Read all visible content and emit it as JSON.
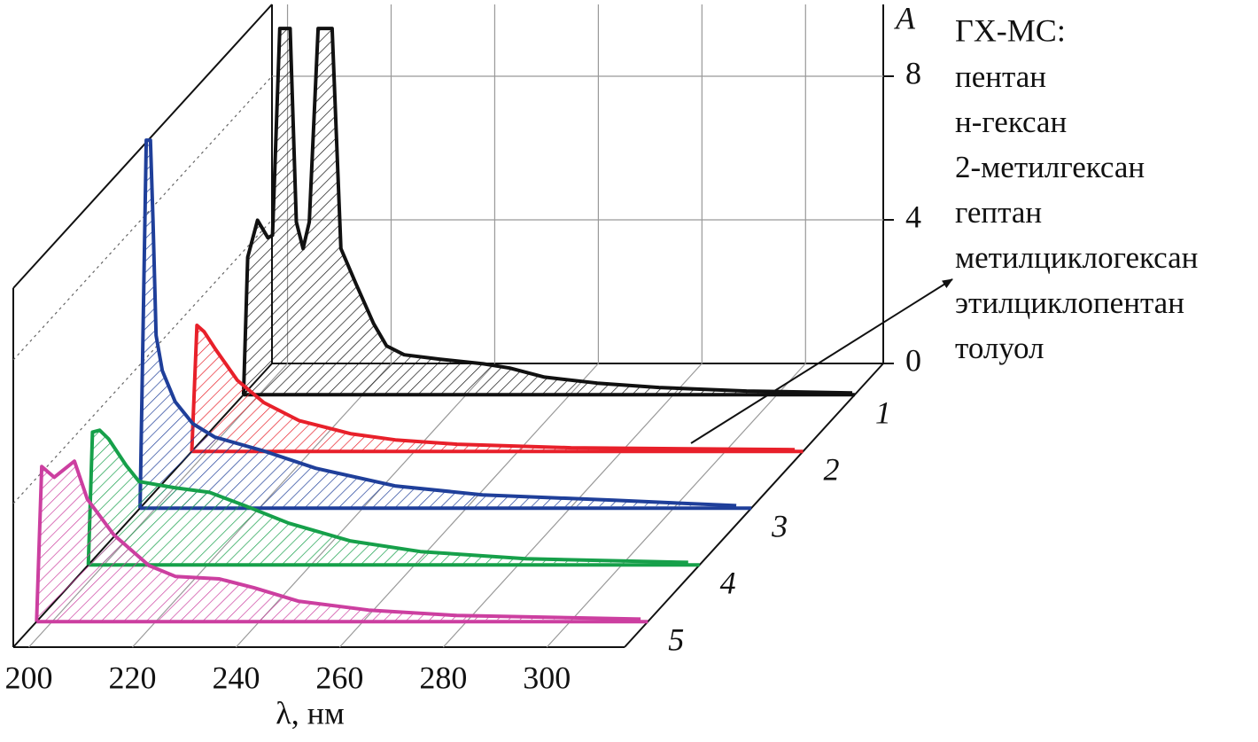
{
  "chart_data": {
    "type": "waterfall",
    "xlim": [
      197,
      315
    ],
    "ylim": [
      0,
      10
    ],
    "xticks": [
      200,
      220,
      240,
      260,
      280,
      300
    ],
    "yticks": [
      0,
      4,
      8
    ],
    "x_label": "λ, нм",
    "y_label": "A",
    "grid": true,
    "series": [
      {
        "name": "1",
        "color": "#111111",
        "x": [
          197,
          197.8,
          199.7,
          201.7,
          202.6,
          204.0,
          206.0,
          207.2,
          208.5,
          209.7,
          211.4,
          214.1,
          215.8,
          218.7,
          222.1,
          224.6,
          228.0,
          234.8,
          243.3,
          248.4,
          255.1,
          265.3,
          277.2,
          294.1,
          314.5
        ],
        "values": [
          0,
          3.83,
          4.86,
          4.37,
          4.44,
          10.2,
          10.2,
          4.81,
          4.07,
          4.81,
          10.2,
          10.2,
          4.07,
          3.09,
          1.98,
          1.36,
          1.11,
          0.99,
          0.86,
          0.74,
          0.49,
          0.32,
          0.2,
          0.1,
          0.05
        ]
      },
      {
        "name": "2",
        "color": "#e8202a",
        "x": [
          197,
          198.0,
          199.4,
          201.6,
          205.8,
          210.9,
          217.7,
          227.8,
          236.3,
          248.2,
          270.2,
          313.4
        ],
        "values": [
          0,
          3.51,
          3.33,
          2.84,
          1.98,
          1.36,
          0.86,
          0.49,
          0.32,
          0.2,
          0.1,
          0.05
        ]
      },
      {
        "name": "3",
        "color": "#1f3f9a",
        "x": [
          197,
          198.2,
          199.0,
          199.5,
          200.1,
          201.3,
          203.8,
          207.2,
          211.4,
          220.7,
          230.9,
          246.2,
          263.1,
          288.5,
          312.1
        ],
        "values": [
          0,
          10.25,
          10.25,
          8.02,
          4.81,
          3.83,
          2.96,
          2.35,
          1.98,
          1.6,
          1.11,
          0.62,
          0.37,
          0.22,
          0.07
        ]
      },
      {
        "name": "4",
        "color": "#16a04a",
        "x": [
          197,
          197.8,
          199.2,
          200.9,
          204.3,
          206.8,
          213.6,
          220.4,
          227.2,
          235.7,
          247.5,
          261.1,
          281.4,
          312.8
        ],
        "values": [
          0,
          3.7,
          3.75,
          3.51,
          2.77,
          2.32,
          2.15,
          2.02,
          1.65,
          1.16,
          0.67,
          0.37,
          0.17,
          0.07
        ]
      },
      {
        "name": "5",
        "color": "#cc3fa0",
        "x": [
          197,
          198.0,
          200.4,
          204.3,
          206.8,
          211.9,
          218.7,
          223.8,
          232.3,
          239.0,
          247.5,
          261.1,
          278.1,
          313.6
        ],
        "values": [
          0,
          4.32,
          4.02,
          4.47,
          3.41,
          2.42,
          1.56,
          1.26,
          1.19,
          0.94,
          0.57,
          0.32,
          0.17,
          0.07
        ]
      }
    ],
    "annotation": {
      "title": "ГХ-МС:",
      "items": [
        "пентан",
        "н-гексан",
        "2-метилгексан",
        "гептан",
        "метилциклогексан",
        "этилциклопентан",
        "толуол"
      ]
    }
  }
}
